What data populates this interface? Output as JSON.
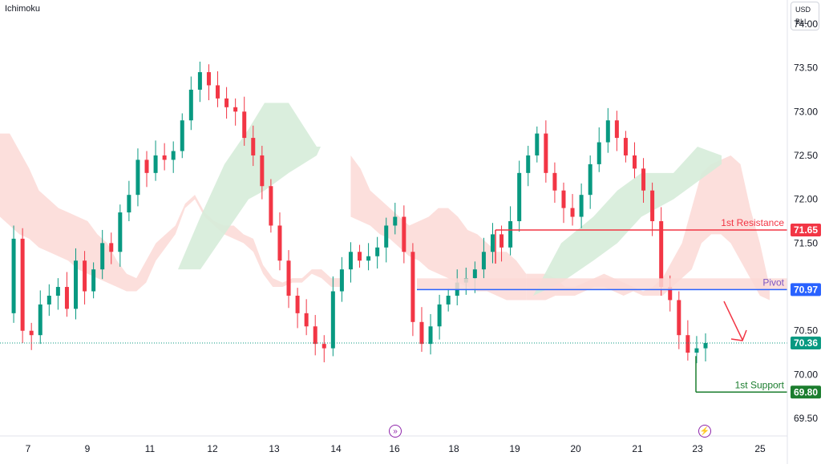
{
  "indicator_label": "Ichimoku",
  "currency": {
    "line1": "USD",
    "line2": "BLL"
  },
  "colors": {
    "up": "#089981",
    "down": "#f23645",
    "resistance": "#f23645",
    "pivot": "#2962ff",
    "support": "#1b7d2e",
    "cloud_red": "#fcd9d6",
    "cloud_green": "#d6ecd9"
  },
  "chart_data": {
    "type": "candlestick",
    "title": "Ichimoku",
    "ylim": [
      69.3,
      74.2
    ],
    "y_ticks": [
      "74.00",
      "73.50",
      "73.00",
      "72.50",
      "72.00",
      "71.50",
      "70.50",
      "70.00",
      "69.50"
    ],
    "x_ticks": [
      "7",
      "9",
      "11",
      "12",
      "13",
      "14",
      "16",
      "18",
      "19",
      "20",
      "21",
      "23",
      "25"
    ],
    "last_price": "70.36",
    "levels": [
      {
        "name": "1st Resistance",
        "value": "71.65"
      },
      {
        "name": "Pivot",
        "value": "70.97"
      },
      {
        "name": "1st Support",
        "value": "69.80"
      }
    ],
    "path": [
      70.7,
      71.55,
      70.5,
      70.45,
      70.8,
      70.9,
      71.0,
      70.75,
      71.3,
      70.95,
      71.2,
      71.5,
      71.4,
      71.85,
      72.05,
      72.45,
      72.3,
      72.5,
      72.45,
      72.55,
      72.9,
      73.25,
      73.45,
      73.3,
      73.15,
      73.05,
      73.0,
      72.7,
      72.5,
      72.15,
      71.7,
      71.3,
      70.9,
      70.7,
      70.55,
      70.35,
      70.3,
      70.95,
      71.2,
      71.4,
      71.3,
      71.35,
      71.45,
      71.7,
      71.8,
      71.4,
      70.6,
      70.35,
      70.55,
      70.8,
      70.9,
      71.05,
      71.1,
      71.2,
      71.4,
      71.6,
      71.45,
      71.75,
      72.3,
      72.5,
      72.75,
      72.3,
      72.1,
      71.9,
      71.8,
      72.05,
      72.4,
      72.65,
      72.9,
      72.7,
      72.5,
      72.35,
      72.1,
      71.75,
      71.0,
      70.85,
      70.45,
      70.25,
      70.3,
      70.36
    ],
    "cloud": {
      "red_top": [
        72.75,
        72.75,
        72.55,
        72.35,
        72.1,
        72.0,
        71.9,
        71.85,
        71.8,
        71.75,
        71.6,
        71.5,
        71.3,
        71.15,
        71.1,
        71.3,
        71.5,
        71.6,
        71.7,
        71.95,
        72.05,
        71.85,
        71.75,
        71.7,
        71.7,
        71.6,
        71.55,
        71.25,
        71.1,
        71.05,
        71.1,
        71.1,
        71.2,
        71.2,
        71.1,
        71.1,
        72.5,
        72.35,
        72.1,
        72.0,
        71.9,
        71.8,
        71.7,
        71.75,
        71.8,
        71.9,
        71.9,
        71.8,
        71.65,
        71.6,
        71.5,
        71.4,
        71.4,
        71.3,
        71.15,
        71.15,
        71.15,
        71.1,
        71.0,
        71.0,
        71.05,
        71.1,
        71.15,
        71.1,
        71.05,
        71.0,
        70.95,
        71.0,
        71.1,
        71.3,
        71.5,
        71.9,
        72.3,
        72.4,
        72.45,
        72.5,
        72.4,
        71.9,
        71.5,
        71.0
      ],
      "red_bot": [
        71.8,
        71.7,
        71.6,
        71.55,
        71.45,
        71.4,
        71.35,
        71.3,
        71.2,
        71.15,
        71.1,
        71.05,
        71.0,
        70.95,
        70.95,
        71.05,
        71.3,
        71.45,
        71.6,
        71.9,
        72.0,
        71.8,
        71.7,
        71.6,
        71.55,
        71.5,
        71.4,
        71.15,
        71.0,
        71.0,
        71.05,
        71.05,
        71.15,
        71.1,
        71.0,
        71.0,
        71.8,
        71.75,
        71.7,
        71.6,
        71.55,
        71.45,
        71.35,
        71.3,
        71.2,
        71.15,
        71.1,
        71.05,
        71.0,
        70.95,
        70.95,
        70.9,
        70.85,
        70.85,
        70.85,
        70.85,
        70.85,
        70.9,
        70.9,
        70.9,
        70.95,
        71.0,
        71.0,
        70.95,
        70.9,
        70.95,
        70.9,
        70.9,
        70.9,
        71.0,
        71.1,
        71.2,
        71.5,
        71.6,
        71.6,
        71.5,
        71.3,
        71.1,
        70.9,
        70.85
      ]
    }
  }
}
